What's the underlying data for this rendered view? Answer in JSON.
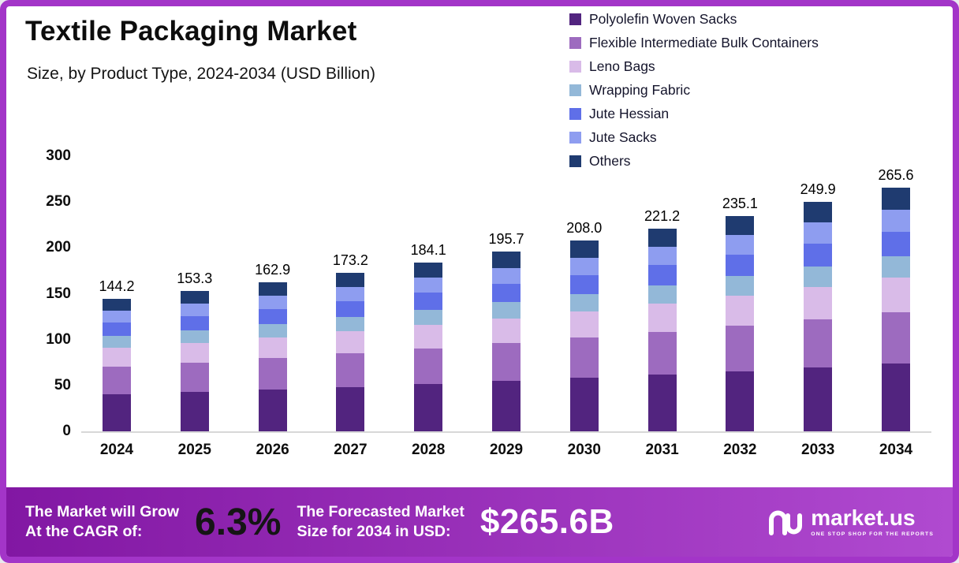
{
  "colors": {
    "frame": "#a335c8",
    "banner_gradient": [
      "#8217a3",
      "#b04ad0"
    ],
    "baseline": "#d8d8d8"
  },
  "chart_data": {
    "type": "bar",
    "stacked": true,
    "title": "Textile Packaging Market",
    "subtitle": "Size, by Product Type, 2024-2034 (USD Billion)",
    "grid": false,
    "legend_position": "top-right",
    "ylim": [
      0,
      300
    ],
    "yticks": [
      0,
      50,
      100,
      150,
      200,
      250,
      300
    ],
    "categories": [
      "2024",
      "2025",
      "2026",
      "2027",
      "2028",
      "2029",
      "2030",
      "2031",
      "2032",
      "2033",
      "2034"
    ],
    "totals": [
      144.2,
      153.3,
      162.9,
      173.2,
      184.1,
      195.7,
      208.0,
      221.2,
      235.1,
      249.9,
      265.6
    ],
    "series": [
      {
        "name": "Polyolefin Woven Sacks",
        "color": "#52247f",
        "values": [
          40.4,
          42.9,
          45.6,
          48.5,
          51.5,
          54.8,
          58.2,
          61.9,
          65.8,
          70.0,
          74.4
        ]
      },
      {
        "name": "Flexible Intermediate Bulk Containers",
        "color": "#9d6bbf",
        "values": [
          30.3,
          32.2,
          34.2,
          36.4,
          38.7,
          41.1,
          43.7,
          46.5,
          49.4,
          52.5,
          55.8
        ]
      },
      {
        "name": "Leno Bags",
        "color": "#d9bbe8",
        "values": [
          20.2,
          21.5,
          22.8,
          24.2,
          25.8,
          27.4,
          29.1,
          31.0,
          32.9,
          35.0,
          37.2
        ]
      },
      {
        "name": "Wrapping Fabric",
        "color": "#93b8d8",
        "values": [
          13.0,
          13.8,
          14.7,
          15.6,
          16.6,
          17.6,
          18.7,
          19.9,
          21.2,
          22.5,
          23.9
        ]
      },
      {
        "name": "Jute Hessian",
        "color": "#5f6fe8",
        "values": [
          14.4,
          15.3,
          16.3,
          17.3,
          18.4,
          19.6,
          20.8,
          22.1,
          23.5,
          25.0,
          26.6
        ]
      },
      {
        "name": "Jute Sacks",
        "color": "#8e9df0",
        "values": [
          13.0,
          13.8,
          14.7,
          15.6,
          16.6,
          17.6,
          18.7,
          19.9,
          21.2,
          22.5,
          23.9
        ]
      },
      {
        "name": "Others",
        "color": "#1f3b70",
        "values": [
          13.0,
          13.8,
          14.7,
          15.6,
          16.6,
          17.6,
          18.7,
          19.9,
          21.2,
          22.5,
          23.9
        ]
      }
    ]
  },
  "banner": {
    "cagr_label_line1": "The Market will Grow",
    "cagr_label_line2": "At the CAGR of:",
    "cagr_value": "6.3%",
    "forecast_label_line1": "The Forecasted Market",
    "forecast_label_line2": "Size for 2034 in USD:",
    "forecast_value": "$265.6B",
    "logo_text": "market.us",
    "logo_tagline": "ONE STOP SHOP FOR THE REPORTS"
  }
}
